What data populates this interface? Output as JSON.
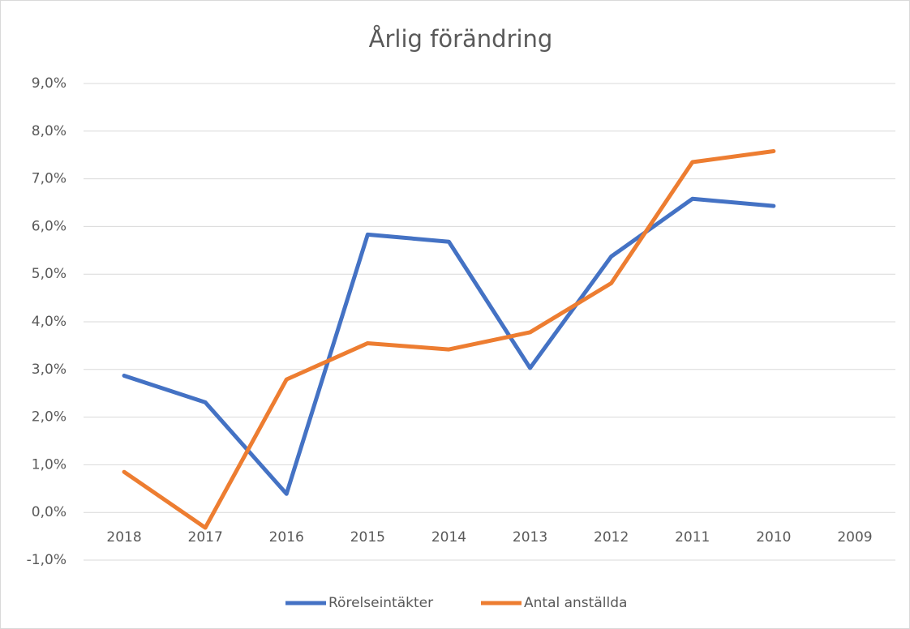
{
  "chart_data": {
    "type": "line",
    "title": "Årlig förändring",
    "categories": [
      "2018",
      "2017",
      "2016",
      "2015",
      "2014",
      "2013",
      "2012",
      "2011",
      "2010",
      "2009"
    ],
    "series": [
      {
        "name": "Rörelseintäkter",
        "color": "#4472c4",
        "values": [
          2.87,
          2.31,
          0.39,
          5.83,
          5.68,
          3.03,
          5.37,
          6.58,
          6.43,
          null
        ]
      },
      {
        "name": "Antal anställda",
        "color": "#ed7d31",
        "values": [
          0.85,
          -0.32,
          2.79,
          3.55,
          3.42,
          3.78,
          4.81,
          7.35,
          7.58,
          null
        ]
      }
    ],
    "ylim": [
      -1,
      9
    ],
    "yticks": [
      {
        "value": -1,
        "label": "-1,0%"
      },
      {
        "value": 0,
        "label": "0,0%"
      },
      {
        "value": 1,
        "label": "1,0%"
      },
      {
        "value": 2,
        "label": "2,0%"
      },
      {
        "value": 3,
        "label": "3,0%"
      },
      {
        "value": 4,
        "label": "4,0%"
      },
      {
        "value": 5,
        "label": "5,0%"
      },
      {
        "value": 6,
        "label": "6,0%"
      },
      {
        "value": 7,
        "label": "7,0%"
      },
      {
        "value": 8,
        "label": "8,0%"
      },
      {
        "value": 9,
        "label": "9,0%"
      }
    ],
    "grid": true,
    "legend": "bottom"
  }
}
